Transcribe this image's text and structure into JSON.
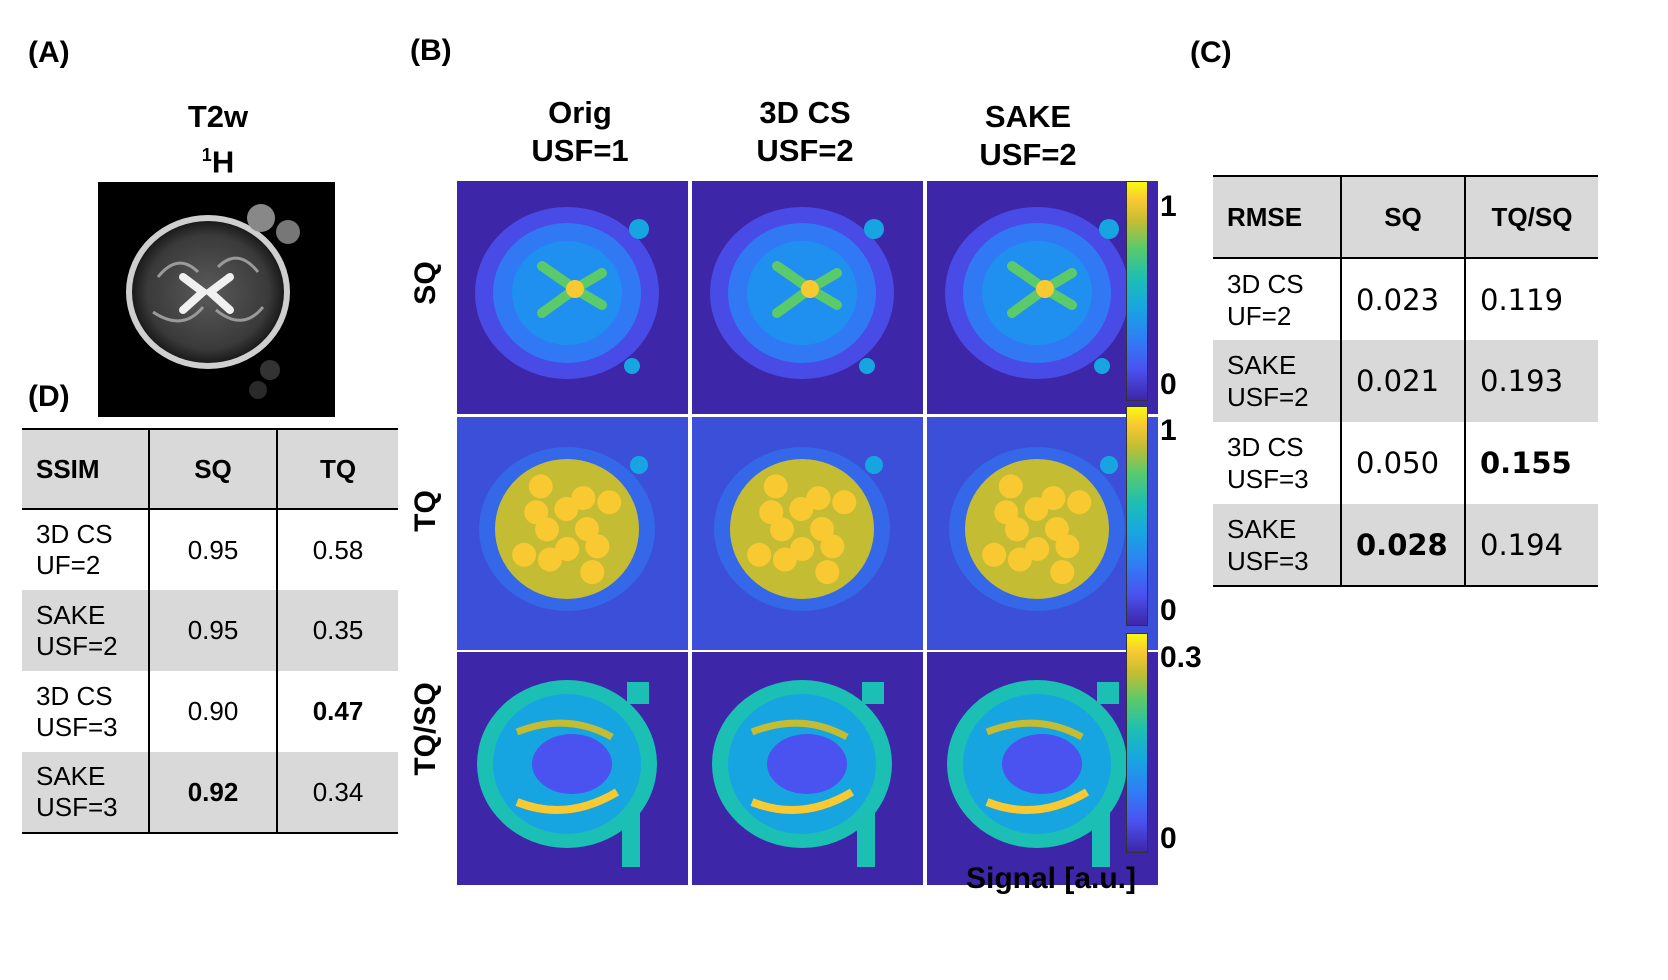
{
  "panels": {
    "a": "(A)",
    "b": "(B)",
    "c": "(C)",
    "d": "(D)"
  },
  "panel_a": {
    "title_line1": "T2w",
    "title_sup": "1",
    "title_line2": "H"
  },
  "panel_b": {
    "columns": [
      {
        "line1": "Orig",
        "line2": "USF=1"
      },
      {
        "line1": "3D CS",
        "line2": "USF=2"
      },
      {
        "line1": "SAKE",
        "line2": "USF=2"
      }
    ],
    "rows": [
      "SQ",
      "TQ",
      "TQ/SQ"
    ],
    "colorbars": [
      {
        "max": "1",
        "min": "0"
      },
      {
        "max": "1",
        "min": "0"
      },
      {
        "max": "0.3",
        "min": "0"
      }
    ],
    "colorbar_label": "Signal [a.u.]",
    "colormap": [
      "#3e26a8",
      "#4a52f0",
      "#2f7ef5",
      "#17a5e2",
      "#1cbfb4",
      "#5bca6a",
      "#c4bd33",
      "#f9c932",
      "#f8fa0d"
    ]
  },
  "table_c": {
    "headers": [
      "RMSE",
      "SQ",
      "TQ/SQ"
    ],
    "rows": [
      {
        "l1": "3D CS",
        "l2": "UF=2",
        "sq": "0.023",
        "tqsq": "0.119",
        "bold": ""
      },
      {
        "l1": "SAKE",
        "l2": "USF=2",
        "sq": "0.021",
        "tqsq": "0.193",
        "bold": ""
      },
      {
        "l1": "3D CS",
        "l2": "USF=3",
        "sq": "0.050",
        "tqsq": "0.155",
        "bold": "tqsq"
      },
      {
        "l1": "SAKE",
        "l2": "USF=3",
        "sq": "0.028",
        "tqsq": "0.194",
        "bold": "sq"
      }
    ]
  },
  "table_d": {
    "headers": [
      "SSIM",
      "SQ",
      "TQ"
    ],
    "rows": [
      {
        "l1": "3D CS",
        "l2": "UF=2",
        "sq": "0.95",
        "tq": "0.58",
        "bold": ""
      },
      {
        "l1": "SAKE",
        "l2": "USF=2",
        "sq": "0.95",
        "tq": "0.35",
        "bold": ""
      },
      {
        "l1": "3D CS",
        "l2": "USF=3",
        "sq": "0.90",
        "tq": "0.47",
        "bold": "tq"
      },
      {
        "l1": "SAKE",
        "l2": "USF=3",
        "sq": "0.92",
        "tq": "0.34",
        "bold": "sq"
      }
    ]
  }
}
